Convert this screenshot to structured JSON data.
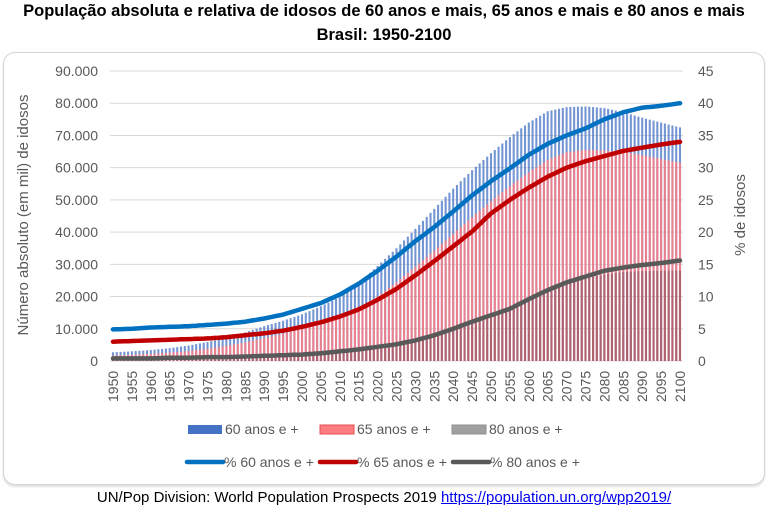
{
  "chart_data": {
    "type": "bar",
    "title": "População absoluta e relativa de idosos de 60 anos e mais, 65 anos e mais e 80 anos e mais",
    "subtitle": "Brasil: 1950-2100",
    "ylabel": "Número absoluto (em mil) de idosos",
    "y2label": "% de idosos",
    "xlabel": "",
    "ylim": [
      0,
      90000
    ],
    "y2lim": [
      0,
      45
    ],
    "yticks": [
      "0",
      "10.000",
      "20.000",
      "30.000",
      "40.000",
      "50.000",
      "60.000",
      "70.000",
      "80.000",
      "90.000"
    ],
    "y2ticks": [
      "0",
      "5",
      "10",
      "15",
      "20",
      "25",
      "30",
      "35",
      "40",
      "45"
    ],
    "grid": true,
    "legend_position": "bottom",
    "x": [
      1950,
      1955,
      1960,
      1965,
      1970,
      1975,
      1980,
      1985,
      1990,
      1995,
      2000,
      2005,
      2010,
      2015,
      2020,
      2025,
      2030,
      2035,
      2040,
      2045,
      2050,
      2055,
      2060,
      2065,
      2070,
      2075,
      2080,
      2085,
      2090,
      2095,
      2100
    ],
    "xticks": [
      "1950",
      "1955",
      "1960",
      "1965",
      "1970",
      "1975",
      "1980",
      "1985",
      "1990",
      "1995",
      "2000",
      "2005",
      "2010",
      "2015",
      "2020",
      "2025",
      "2030",
      "2035",
      "2040",
      "2045",
      "2050",
      "2055",
      "2060",
      "2065",
      "2070",
      "2075",
      "2080",
      "2085",
      "2090",
      "2095",
      "2100"
    ],
    "bar_series": [
      {
        "name": "60 anos e +",
        "color": "#4472c4",
        "values": [
          2700,
          3000,
          3400,
          4000,
          4800,
          5900,
          7200,
          8900,
          10800,
          12500,
          14500,
          17000,
          19800,
          24200,
          29500,
          35000,
          41000,
          47200,
          53500,
          59200,
          64500,
          69500,
          74000,
          77500,
          78800,
          79000,
          78500,
          77200,
          75500,
          74000,
          72500
        ]
      },
      {
        "name": "65 anos e +",
        "color": "#ff7c80",
        "values": [
          1700,
          1950,
          2200,
          2600,
          3100,
          3800,
          4700,
          5800,
          7100,
          8500,
          10000,
          11700,
          13700,
          16400,
          20000,
          24500,
          29300,
          34300,
          39500,
          44600,
          49600,
          54300,
          58600,
          62400,
          64800,
          65500,
          65300,
          64900,
          63900,
          62700,
          61500
        ]
      },
      {
        "name": "80 anos e +",
        "color": "#8a8a8a",
        "values": [
          180,
          210,
          250,
          310,
          380,
          480,
          600,
          760,
          950,
          1200,
          1550,
          2000,
          2550,
          3250,
          4100,
          5200,
          6600,
          8300,
          10300,
          12500,
          14700,
          17000,
          19500,
          21800,
          23800,
          25500,
          26900,
          27600,
          27900,
          28000,
          28100
        ]
      }
    ],
    "line_series": [
      {
        "name": "% 60 anos e +",
        "color": "#0070c0",
        "values": [
          4.9,
          5.0,
          5.2,
          5.3,
          5.4,
          5.6,
          5.8,
          6.1,
          6.6,
          7.2,
          8.1,
          9.0,
          10.3,
          12.0,
          14.0,
          16.2,
          18.6,
          20.8,
          23.2,
          25.7,
          27.9,
          29.9,
          32.0,
          33.7,
          35.0,
          36.1,
          37.5,
          38.6,
          39.3,
          39.6,
          40.0
        ]
      },
      {
        "name": "% 65 anos e +",
        "color": "#c00000",
        "values": [
          3.0,
          3.1,
          3.2,
          3.3,
          3.4,
          3.5,
          3.7,
          4.0,
          4.3,
          4.7,
          5.3,
          6.0,
          6.9,
          8.0,
          9.5,
          11.2,
          13.3,
          15.5,
          17.8,
          20.1,
          22.9,
          25.0,
          26.9,
          28.6,
          30.0,
          31.0,
          31.8,
          32.6,
          33.1,
          33.6,
          34.0
        ]
      },
      {
        "name": "% 80 anos e +",
        "color": "#595959",
        "values": [
          0.4,
          0.4,
          0.4,
          0.5,
          0.5,
          0.6,
          0.6,
          0.7,
          0.8,
          0.9,
          1.0,
          1.2,
          1.5,
          1.8,
          2.2,
          2.6,
          3.2,
          4.0,
          5.0,
          6.1,
          7.1,
          8.1,
          9.6,
          11.0,
          12.2,
          13.1,
          14.0,
          14.5,
          14.9,
          15.2,
          15.6
        ]
      }
    ]
  },
  "source": {
    "text": "UN/Pop Division: World Population Prospects 2019",
    "link_text": "https://population.un.org/wpp2019/"
  }
}
